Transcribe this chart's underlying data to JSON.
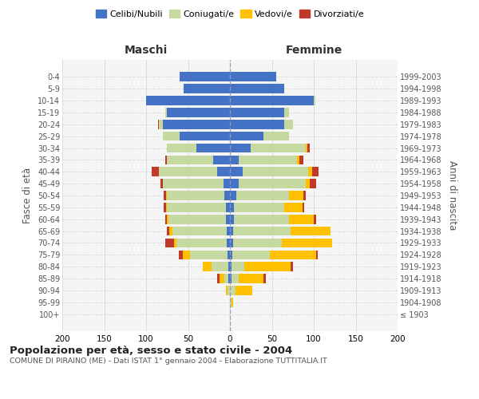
{
  "age_groups": [
    "100+",
    "95-99",
    "90-94",
    "85-89",
    "80-84",
    "75-79",
    "70-74",
    "65-69",
    "60-64",
    "55-59",
    "50-54",
    "45-49",
    "40-44",
    "35-39",
    "30-34",
    "25-29",
    "20-24",
    "15-19",
    "10-14",
    "5-9",
    "0-4"
  ],
  "birth_years": [
    "≤ 1903",
    "1904-1908",
    "1909-1913",
    "1914-1918",
    "1919-1923",
    "1924-1928",
    "1929-1933",
    "1934-1938",
    "1939-1943",
    "1944-1948",
    "1949-1953",
    "1954-1958",
    "1959-1963",
    "1964-1968",
    "1969-1973",
    "1974-1978",
    "1979-1983",
    "1984-1988",
    "1989-1993",
    "1994-1998",
    "1999-2003"
  ],
  "male_celibi": [
    0,
    0,
    0,
    2,
    2,
    3,
    4,
    4,
    5,
    5,
    7,
    8,
    15,
    20,
    40,
    60,
    80,
    75,
    100,
    55,
    60
  ],
  "male_coniugati": [
    0,
    0,
    3,
    5,
    20,
    45,
    60,
    65,
    68,
    70,
    68,
    72,
    70,
    55,
    35,
    20,
    5,
    2,
    0,
    0,
    0
  ],
  "male_vedovi": [
    0,
    0,
    2,
    5,
    10,
    8,
    3,
    3,
    2,
    1,
    1,
    0,
    0,
    0,
    0,
    0,
    0,
    0,
    0,
    0,
    0
  ],
  "male_divorziati": [
    0,
    0,
    0,
    3,
    0,
    5,
    10,
    3,
    2,
    3,
    3,
    3,
    8,
    2,
    0,
    0,
    1,
    0,
    0,
    0,
    0
  ],
  "female_nubili": [
    0,
    0,
    0,
    2,
    2,
    3,
    4,
    4,
    5,
    5,
    8,
    10,
    15,
    10,
    25,
    40,
    65,
    65,
    100,
    65,
    55
  ],
  "female_coniugate": [
    0,
    2,
    7,
    8,
    15,
    45,
    58,
    68,
    65,
    60,
    62,
    80,
    78,
    70,
    65,
    30,
    10,
    5,
    2,
    0,
    0
  ],
  "female_vedove": [
    0,
    2,
    20,
    30,
    55,
    55,
    60,
    48,
    30,
    22,
    18,
    5,
    5,
    3,
    2,
    0,
    0,
    0,
    0,
    0,
    0
  ],
  "female_divorziate": [
    0,
    0,
    0,
    3,
    3,
    2,
    0,
    0,
    3,
    2,
    2,
    8,
    8,
    5,
    3,
    0,
    0,
    0,
    0,
    0,
    0
  ],
  "colors": {
    "celibi": "#4472c4",
    "coniugati": "#c5d9a0",
    "vedovi": "#ffc000",
    "divorziati": "#c0392b"
  },
  "title": "Popolazione per età, sesso e stato civile - 2004",
  "subtitle": "COMUNE DI PIRAINO (ME) - Dati ISTAT 1° gennaio 2004 - Elaborazione TUTTITALIA.IT",
  "xlabel_left": "Maschi",
  "xlabel_right": "Femmine",
  "ylabel_left": "Fasce di età",
  "ylabel_right": "Anni di nascita",
  "background_color": "#ffffff",
  "grid_color": "#dddddd",
  "face_color": "#f5f5f5"
}
